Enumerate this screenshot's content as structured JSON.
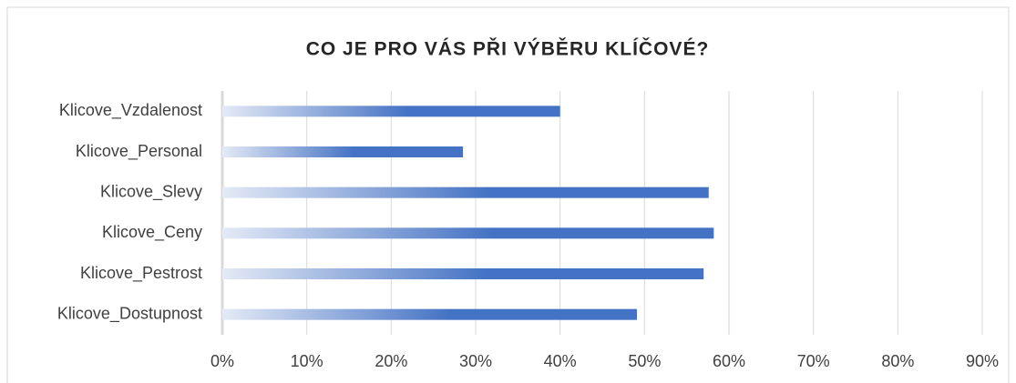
{
  "chart_data": {
    "type": "bar",
    "orientation": "horizontal",
    "title": "CO JE PRO VÁS PŘI VÝBĚRU KLÍČOVÉ?",
    "categories": [
      "Klicove_Vzdalenost",
      "Klicove_Personal",
      "Klicove_Slevy",
      "Klicove_Ceny",
      "Klicove_Pestrost",
      "Klicove_Dostupnost"
    ],
    "values": [
      40,
      28.5,
      57.6,
      58.2,
      57,
      49.1
    ],
    "color": "#4472c4",
    "xlim": [
      0,
      90
    ],
    "xticks": [
      {
        "value": 0,
        "label": "0%"
      },
      {
        "value": 10,
        "label": "10%"
      },
      {
        "value": 20,
        "label": "20%"
      },
      {
        "value": 30,
        "label": "30%"
      },
      {
        "value": 40,
        "label": "40%"
      },
      {
        "value": 50,
        "label": "50%"
      },
      {
        "value": 60,
        "label": "60%"
      },
      {
        "value": 70,
        "label": "70%"
      },
      {
        "value": 80,
        "label": "80%"
      },
      {
        "value": 90,
        "label": "90%"
      }
    ],
    "grid": true
  }
}
